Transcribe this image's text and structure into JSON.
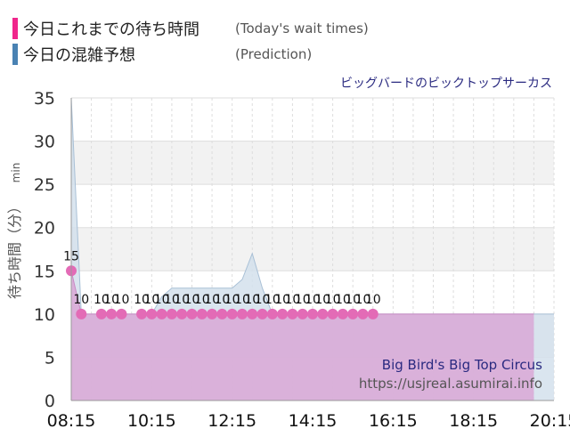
{
  "legend": {
    "actual": {
      "label_jp": "今日これまでの待ち時間",
      "label_en": "(Today's wait times)",
      "color": "#f0268c"
    },
    "prediction": {
      "label_jp": "今日の混雑予想",
      "label_en": "(Prediction)",
      "color": "#4a82b3"
    }
  },
  "chart_data": {
    "type": "line",
    "subtitle": "ビッグバードのビックトップサーカス",
    "ylabel": "待ち時間（分）",
    "ylabel_unit": "min",
    "ylim": [
      0,
      35
    ],
    "yticks": [
      0,
      5,
      10,
      15,
      20,
      25,
      30,
      35
    ],
    "xlim": [
      "08:15",
      "20:15"
    ],
    "xticks": [
      "08:15",
      "10:15",
      "12:15",
      "14:15",
      "16:15",
      "18:15",
      "20:15"
    ],
    "grid": true,
    "series": [
      {
        "role": "actual",
        "kind": "area-with-points",
        "color": "#e36bb6",
        "fill": "#d9a8d6",
        "x": [
          "08:15",
          "08:30",
          "08:45",
          "09:00",
          "09:15",
          "09:30",
          "09:45",
          "10:00",
          "10:15",
          "10:30",
          "10:45",
          "11:00",
          "11:15",
          "11:30",
          "11:45",
          "12:00",
          "12:15",
          "12:30",
          "12:45",
          "13:00",
          "13:15",
          "13:30",
          "13:45",
          "14:00",
          "14:15",
          "14:30",
          "14:45",
          "15:00",
          "15:15",
          "15:30",
          "15:45",
          "16:00",
          "16:15",
          "16:30",
          "16:45",
          "17:00",
          "17:15",
          "17:30",
          "17:45",
          "18:00",
          "18:15",
          "18:30",
          "18:45",
          "19:00",
          "19:15",
          "19:30",
          "19:45"
        ],
        "values": [
          15,
          10,
          10,
          10,
          10,
          10,
          10,
          10,
          10,
          10,
          10,
          10,
          10,
          10,
          10,
          10,
          10,
          10,
          10,
          10,
          10,
          10,
          10,
          10,
          10,
          10,
          10,
          10,
          10,
          10,
          10,
          10,
          10,
          10,
          10,
          10,
          10,
          10,
          10,
          10,
          10,
          10,
          10,
          10,
          10,
          10,
          10
        ],
        "markers_at": [
          "08:15",
          "08:30",
          "09:00",
          "09:15",
          "09:30",
          "10:00",
          "10:15",
          "10:30",
          "10:45",
          "11:00",
          "11:15",
          "11:30",
          "11:45",
          "12:00",
          "12:15",
          "12:30",
          "12:45",
          "13:00",
          "13:15",
          "13:30",
          "13:45",
          "14:00",
          "14:15",
          "14:30",
          "14:45",
          "15:00",
          "15:15",
          "15:30",
          "15:45"
        ]
      },
      {
        "role": "prediction",
        "kind": "area",
        "color": "#a9c0d6",
        "fill": "#d4e1ec",
        "x": [
          "08:15",
          "08:30",
          "08:45",
          "09:00",
          "09:15",
          "09:30",
          "09:45",
          "10:00",
          "10:15",
          "10:30",
          "10:45",
          "11:00",
          "11:15",
          "11:30",
          "11:45",
          "12:00",
          "12:15",
          "12:30",
          "12:45",
          "13:00",
          "13:15",
          "13:30",
          "13:45",
          "14:00",
          "14:15",
          "14:30",
          "14:45",
          "15:00",
          "15:15",
          "15:30",
          "15:45",
          "16:00",
          "16:15",
          "16:30",
          "16:45",
          "17:00",
          "17:15",
          "17:30",
          "17:45",
          "18:00",
          "18:15",
          "18:30",
          "18:45",
          "19:00",
          "19:15",
          "19:30",
          "19:45",
          "20:00",
          "20:15"
        ],
        "values": [
          35,
          10,
          10,
          10,
          10,
          10,
          10,
          10,
          10,
          12,
          13,
          13,
          13,
          13,
          13,
          13,
          13,
          14,
          17,
          13,
          10,
          10,
          10,
          10,
          10,
          10,
          10,
          10,
          10,
          10,
          10,
          10,
          10,
          10,
          10,
          10,
          10,
          10,
          10,
          10,
          10,
          10,
          10,
          10,
          10,
          10,
          10,
          10,
          10
        ]
      }
    ],
    "annotations": {
      "brand_en": "Big Bird's Big Top Circus",
      "url": "https://usjreal.asumirai.info"
    }
  }
}
